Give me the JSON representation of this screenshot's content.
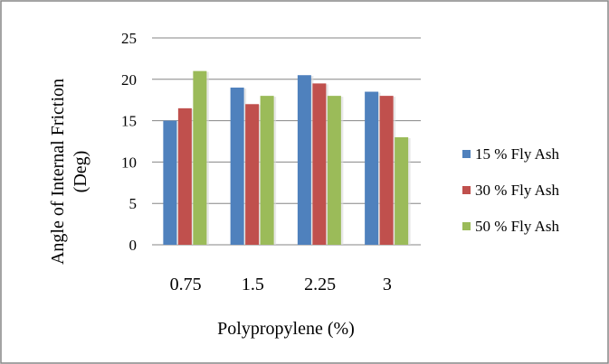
{
  "chart_data": {
    "type": "bar",
    "title": "",
    "xlabel": "Polypropylene (%)",
    "ylabel": [
      "Angle of Internal Friction",
      "(Deg)"
    ],
    "categories": [
      "0.75",
      "1.5",
      "2.25",
      "3"
    ],
    "ylim": [
      0,
      25
    ],
    "yticks": [
      "0",
      "5",
      "10",
      "15",
      "20",
      "25"
    ],
    "grid": true,
    "legend_position": "right",
    "series": [
      {
        "name": "15 % Fly Ash",
        "color": "#4F81BD",
        "values": [
          15,
          19,
          20.5,
          18.5
        ]
      },
      {
        "name": "30 % Fly Ash",
        "color": "#C0504D",
        "values": [
          16.5,
          17,
          19.5,
          18
        ]
      },
      {
        "name": "50 % Fly Ash",
        "color": "#9BBB59",
        "values": [
          21,
          18,
          18,
          13
        ]
      }
    ]
  }
}
